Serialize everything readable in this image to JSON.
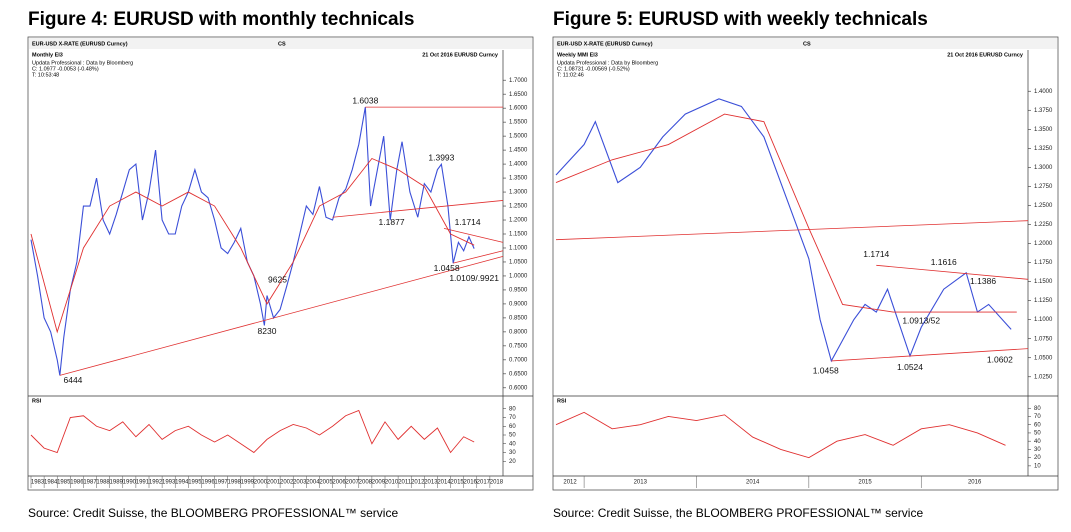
{
  "chart_data": [
    {
      "type": "line",
      "title": "Figure 4: EURUSD with monthly technicals",
      "source": "Source: Credit Suisse, the BLOOMBERG PROFESSIONAL™ service",
      "instrument": "EUR-USD X-RATE (EURUSD Curncy)",
      "broker": "CS",
      "date_ticker": "21 Oct 2016 EURUSD Curncy",
      "period_label": "Monthly EI3",
      "provider": "Updata Professional : Data by Bloomberg",
      "quote": "C: 1.0977 -0.0053 (-0.48%)",
      "time": "T: 10:53:48",
      "xlim": [
        1983,
        2019
      ],
      "xticks": [
        1983,
        1984,
        1985,
        1986,
        1987,
        1988,
        1989,
        1990,
        1991,
        1992,
        1993,
        1994,
        1995,
        1996,
        1997,
        1998,
        1999,
        2000,
        2001,
        2002,
        2003,
        2004,
        2005,
        2006,
        2007,
        2008,
        2009,
        2010,
        2011,
        2012,
        2013,
        2014,
        2015,
        2016,
        2017,
        2018
      ],
      "ylim": [
        0.585,
        1.715
      ],
      "yticks": [
        {
          "value": 0.6,
          "label": "0.6000"
        },
        {
          "value": 0.65,
          "label": "0.6500"
        },
        {
          "value": 0.7,
          "label": "0.7000"
        },
        {
          "value": 0.75,
          "label": "0.7500"
        },
        {
          "value": 0.8,
          "label": "0.8000"
        },
        {
          "value": 0.85,
          "label": "0.8500"
        },
        {
          "value": 0.9,
          "label": "0.9000"
        },
        {
          "value": 0.95,
          "label": "0.9500"
        },
        {
          "value": 1.0,
          "label": "1.0000"
        },
        {
          "value": 1.05,
          "label": "1.0500"
        },
        {
          "value": 1.1,
          "label": "1.1000"
        },
        {
          "value": 1.15,
          "label": "1.1500"
        },
        {
          "value": 1.2,
          "label": "1.2000"
        },
        {
          "value": 1.25,
          "label": "1.2500"
        },
        {
          "value": 1.3,
          "label": "1.3000"
        },
        {
          "value": 1.35,
          "label": "1.3500"
        },
        {
          "value": 1.4,
          "label": "1.4000"
        },
        {
          "value": 1.45,
          "label": "1.4500"
        },
        {
          "value": 1.5,
          "label": "1.5000"
        },
        {
          "value": 1.55,
          "label": "1.5500"
        },
        {
          "value": 1.6,
          "label": "1.6000"
        },
        {
          "value": 1.65,
          "label": "1.6500"
        },
        {
          "value": 1.7,
          "label": "1.7000"
        }
      ],
      "series": [
        {
          "color": "#3b4fd8",
          "x": [
            1983.0,
            1983.5,
            1984.0,
            1984.5,
            1985.0,
            1985.2,
            1985.5,
            1986.0,
            1986.5,
            1987.0,
            1987.5,
            1988.0,
            1988.5,
            1989.0,
            1989.5,
            1990.0,
            1990.5,
            1991.0,
            1991.5,
            1992.0,
            1992.5,
            1993.0,
            1993.5,
            1994.0,
            1994.5,
            1995.0,
            1995.5,
            1996.0,
            1996.5,
            1997.0,
            1997.5,
            1998.0,
            1998.5,
            1999.0,
            1999.5,
            2000.0,
            2000.5,
            2000.8,
            2001.0,
            2001.5,
            2002.0,
            2002.5,
            2003.0,
            2003.5,
            2004.0,
            2004.5,
            2005.0,
            2005.5,
            2006.0,
            2006.5,
            2007.0,
            2007.5,
            2008.0,
            2008.5,
            2008.9,
            2009.5,
            2009.9,
            2010.4,
            2010.9,
            2011.3,
            2011.9,
            2012.5,
            2013.0,
            2013.5,
            2014.0,
            2014.3,
            2014.8,
            2015.2,
            2015.6,
            2016.0,
            2016.4,
            2016.8
          ],
          "values": [
            1.13,
            1.0,
            0.85,
            0.8,
            0.7,
            0.6444,
            0.78,
            0.95,
            1.05,
            1.25,
            1.25,
            1.35,
            1.2,
            1.15,
            1.22,
            1.3,
            1.38,
            1.4,
            1.2,
            1.3,
            1.45,
            1.2,
            1.15,
            1.15,
            1.25,
            1.3,
            1.38,
            1.3,
            1.28,
            1.2,
            1.1,
            1.08,
            1.12,
            1.17,
            1.05,
            1.0,
            0.9,
            0.823,
            0.93,
            0.85,
            0.88,
            0.9625,
            1.05,
            1.15,
            1.25,
            1.22,
            1.32,
            1.21,
            1.2,
            1.28,
            1.31,
            1.38,
            1.47,
            1.6038,
            1.25,
            1.4,
            1.5,
            1.2,
            1.38,
            1.48,
            1.3,
            1.21,
            1.33,
            1.3,
            1.38,
            1.3993,
            1.25,
            1.0458,
            1.12,
            1.09,
            1.14,
            1.0977
          ]
        },
        {
          "color": "#e03030",
          "x": [
            1983,
            1985,
            1987,
            1989,
            1991,
            1993,
            1995,
            1997,
            1999,
            2001,
            2003,
            2005,
            2007,
            2009,
            2011,
            2013,
            2015,
            2016.8
          ],
          "values": [
            1.15,
            0.8,
            1.1,
            1.25,
            1.3,
            1.25,
            1.3,
            1.25,
            1.1,
            0.9,
            1.05,
            1.25,
            1.3,
            1.42,
            1.38,
            1.32,
            1.15,
            1.11
          ]
        }
      ],
      "trendlines": [
        {
          "x": [
            1985.2,
            2019
          ],
          "values": [
            0.6444,
            1.07
          ]
        },
        {
          "x": [
            2006,
            2019
          ],
          "values": [
            1.21,
            1.27
          ]
        },
        {
          "x": [
            2008.5,
            2019
          ],
          "values": [
            1.6038,
            1.6038
          ]
        },
        {
          "x": [
            2014.5,
            2019
          ],
          "values": [
            1.17,
            1.12
          ]
        },
        {
          "x": [
            2015.2,
            2019
          ],
          "values": [
            1.0458,
            1.09
          ]
        }
      ],
      "annotations": [
        {
          "label": "1.6038",
          "x": 2008.5,
          "y": 1.625
        },
        {
          "label": "1.3993",
          "x": 2014.3,
          "y": 1.42
        },
        {
          "label": "1.1877",
          "x": 2010.5,
          "y": 1.19
        },
        {
          "label": "1.1714",
          "x": 2016.3,
          "y": 1.19
        },
        {
          "label": "1.0458",
          "x": 2014.7,
          "y": 1.025
        },
        {
          "label": "1.0109/.9921",
          "x": 2016.8,
          "y": 0.99
        },
        {
          "label": "9625",
          "x": 2001.8,
          "y": 0.985
        },
        {
          "label": "8230",
          "x": 2001.0,
          "y": 0.8
        },
        {
          "label": "6444",
          "x": 1986.2,
          "y": 0.625
        }
      ],
      "rsi": {
        "label": "RSI",
        "color": "#e03030",
        "ylim": [
          10,
          90
        ],
        "yticks": [
          20,
          30,
          40,
          50,
          60,
          70,
          80
        ],
        "x": [
          1983,
          1984,
          1985,
          1986,
          1987,
          1988,
          1989,
          1990,
          1991,
          1992,
          1993,
          1994,
          1995,
          1996,
          1997,
          1998,
          1999,
          2000,
          2001,
          2002,
          2003,
          2004,
          2005,
          2006,
          2007,
          2008,
          2009,
          2010,
          2011,
          2012,
          2013,
          2014,
          2015,
          2016,
          2016.8
        ],
        "values": [
          50,
          35,
          30,
          70,
          72,
          60,
          55,
          65,
          48,
          62,
          45,
          55,
          60,
          50,
          42,
          50,
          40,
          30,
          45,
          55,
          62,
          58,
          50,
          60,
          72,
          78,
          40,
          65,
          45,
          60,
          45,
          58,
          30,
          48,
          42
        ]
      }
    },
    {
      "type": "line",
      "title": "Figure 5: EURUSD with weekly technicals",
      "source": "Source: Credit Suisse, the BLOOMBERG PROFESSIONAL™ service",
      "instrument": "EUR-USD X-RATE (EURUSD Curncy)",
      "broker": "CS",
      "date_ticker": "21 Oct 2016 EURUSD Curncy",
      "period_label": "Weekly MMI EI3",
      "provider": "Updata Professional : Data by Bloomberg",
      "quote": "C: 1.08731 -0.00569 (-0.52%)",
      "time": "T: 11:02:46",
      "xlim": [
        2012.75,
        2016.95
      ],
      "xticks": [
        2012,
        2013,
        2014,
        2015,
        2016
      ],
      "ylim": [
        1.005,
        1.42
      ],
      "yticks": [
        {
          "value": 1.025,
          "label": "1.0250"
        },
        {
          "value": 1.05,
          "label": "1.0500"
        },
        {
          "value": 1.075,
          "label": "1.0750"
        },
        {
          "value": 1.1,
          "label": "1.1000"
        },
        {
          "value": 1.125,
          "label": "1.1250"
        },
        {
          "value": 1.15,
          "label": "1.1500"
        },
        {
          "value": 1.175,
          "label": "1.1750"
        },
        {
          "value": 1.2,
          "label": "1.2000"
        },
        {
          "value": 1.225,
          "label": "1.2250"
        },
        {
          "value": 1.25,
          "label": "1.2500"
        },
        {
          "value": 1.275,
          "label": "1.2750"
        },
        {
          "value": 1.3,
          "label": "1.3000"
        },
        {
          "value": 1.325,
          "label": "1.3250"
        },
        {
          "value": 1.35,
          "label": "1.3500"
        },
        {
          "value": 1.375,
          "label": "1.3750"
        },
        {
          "value": 1.4,
          "label": "1.4000"
        }
      ],
      "series": [
        {
          "color": "#3b4fd8",
          "x": [
            2012.75,
            2013.0,
            2013.1,
            2013.3,
            2013.5,
            2013.7,
            2013.9,
            2014.2,
            2014.4,
            2014.6,
            2014.8,
            2015.0,
            2015.1,
            2015.2,
            2015.4,
            2015.5,
            2015.6,
            2015.7,
            2015.9,
            2016.0,
            2016.2,
            2016.4,
            2016.5,
            2016.6,
            2016.8
          ],
          "values": [
            1.29,
            1.33,
            1.36,
            1.28,
            1.3,
            1.34,
            1.37,
            1.39,
            1.38,
            1.34,
            1.26,
            1.18,
            1.1,
            1.0458,
            1.1,
            1.12,
            1.11,
            1.14,
            1.0524,
            1.09,
            1.14,
            1.1616,
            1.11,
            1.12,
            1.0873
          ]
        },
        {
          "color": "#e03030",
          "x": [
            2012.75,
            2013.25,
            2013.75,
            2014.25,
            2014.6,
            2015.0,
            2015.3,
            2015.75,
            2016.25,
            2016.85
          ],
          "values": [
            1.28,
            1.31,
            1.33,
            1.37,
            1.36,
            1.22,
            1.12,
            1.11,
            1.11,
            1.11
          ]
        }
      ],
      "trendlines": [
        {
          "x": [
            2012.75,
            2016.95
          ],
          "values": [
            1.205,
            1.23
          ]
        },
        {
          "x": [
            2015.6,
            2016.95
          ],
          "values": [
            1.1714,
            1.153
          ]
        },
        {
          "x": [
            2015.2,
            2016.95
          ],
          "values": [
            1.0458,
            1.062
          ]
        }
      ],
      "annotations": [
        {
          "label": "1.1714",
          "x": 2015.6,
          "y": 1.185
        },
        {
          "label": "1.1616",
          "x": 2016.2,
          "y": 1.175
        },
        {
          "label": "1.1386",
          "x": 2016.55,
          "y": 1.15
        },
        {
          "label": "1.0913/52",
          "x": 2016.0,
          "y": 1.098
        },
        {
          "label": "1.0458",
          "x": 2015.15,
          "y": 1.032
        },
        {
          "label": "1.0524",
          "x": 2015.9,
          "y": 1.037
        },
        {
          "label": "1.0602",
          "x": 2016.7,
          "y": 1.047
        }
      ],
      "rsi": {
        "label": "RSI",
        "color": "#e03030",
        "ylim": [
          5,
          90
        ],
        "yticks": [
          10,
          20,
          30,
          40,
          50,
          60,
          70,
          80
        ],
        "x": [
          2012.75,
          2013.0,
          2013.25,
          2013.5,
          2013.75,
          2014.0,
          2014.25,
          2014.5,
          2014.75,
          2015.0,
          2015.25,
          2015.5,
          2015.75,
          2016.0,
          2016.25,
          2016.5,
          2016.75
        ],
        "values": [
          60,
          75,
          55,
          60,
          70,
          65,
          72,
          45,
          30,
          20,
          40,
          48,
          35,
          55,
          60,
          50,
          35
        ]
      }
    }
  ]
}
